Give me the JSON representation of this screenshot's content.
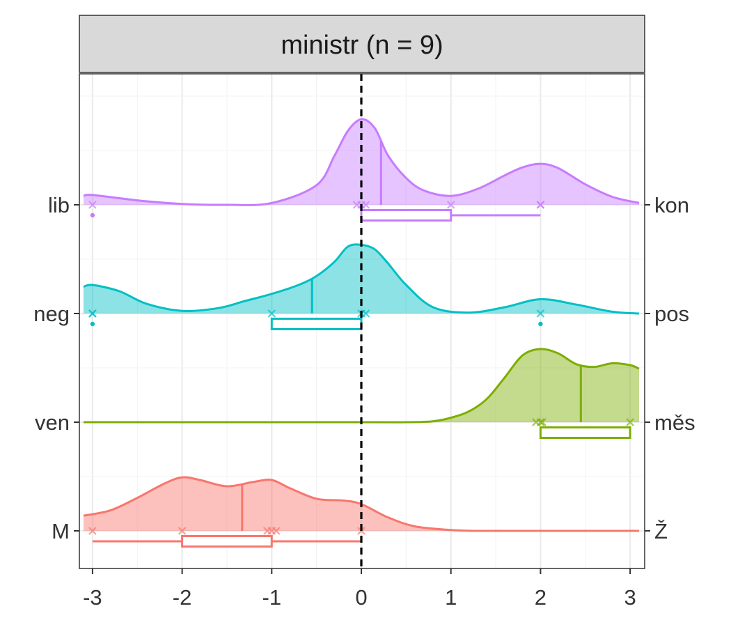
{
  "chart_data": {
    "type": "ridgeline",
    "title": "ministr (n = 9)",
    "xlabel": "",
    "ylabel": "",
    "xlim": [
      -3.12,
      3.12
    ],
    "x_ticks": [
      -3,
      -2,
      -1,
      0,
      1,
      2,
      3
    ],
    "x_tick_labels": [
      "-3",
      "-2",
      "-1",
      "0",
      "1",
      "2",
      "3"
    ],
    "reference_line": {
      "x": 0,
      "style": "dashed",
      "color": "#000000"
    },
    "grid": true,
    "legend": "none",
    "series": [
      {
        "left_label": "lib",
        "right_label": "kon",
        "color": "#C77CFF",
        "values": [
          -3,
          -0.05,
          0,
          0.05,
          1,
          2,
          2
        ],
        "outliers": [
          -3
        ],
        "median": 0.22,
        "box": {
          "q1": 0,
          "q3": 1,
          "whisker_low": 0,
          "whisker_high": 2
        },
        "density_x": [
          -3.1,
          -3,
          -2.5,
          -2,
          -1.5,
          -1,
          -0.5,
          -0.3,
          -0.15,
          0,
          0.15,
          0.3,
          0.5,
          0.7,
          1,
          1.3,
          1.6,
          1.8,
          2,
          2.2,
          2.5,
          2.8,
          3.1
        ],
        "density_y": [
          0.1,
          0.11,
          0.05,
          0.01,
          0,
          0.02,
          0.22,
          0.55,
          0.83,
          0.96,
          0.86,
          0.55,
          0.3,
          0.16,
          0.1,
          0.18,
          0.33,
          0.42,
          0.46,
          0.41,
          0.23,
          0.09,
          0.02
        ]
      },
      {
        "left_label": "neg",
        "right_label": "pos",
        "color": "#00BFC4",
        "values": [
          -3,
          -3,
          -1,
          0,
          0.05,
          2
        ],
        "outliers": [
          -3,
          2
        ],
        "median": -0.55,
        "box": {
          "q1": -1,
          "q3": 0,
          "whisker_low": -1,
          "whisker_high": 0
        },
        "density_x": [
          -3.1,
          -3,
          -2.7,
          -2.4,
          -2,
          -1.6,
          -1.3,
          -1,
          -0.7,
          -0.5,
          -0.3,
          -0.15,
          0,
          0.15,
          0.3,
          0.5,
          0.8,
          1.2,
          1.6,
          2,
          2.4,
          2.8,
          3.1
        ],
        "density_y": [
          0.3,
          0.32,
          0.25,
          0.11,
          0.03,
          0.06,
          0.14,
          0.22,
          0.32,
          0.42,
          0.58,
          0.75,
          0.77,
          0.72,
          0.56,
          0.32,
          0.07,
          0.01,
          0.07,
          0.16,
          0.1,
          0.02,
          0
        ]
      },
      {
        "left_label": "ven",
        "right_label": "měs",
        "color": "#7CAE00",
        "values": [
          1.95,
          2,
          2.02,
          3
        ],
        "outliers": [],
        "median": 2.45,
        "box": {
          "q1": 2,
          "q3": 3,
          "whisker_low": 2,
          "whisker_high": 3
        },
        "density_x": [
          -3.1,
          0,
          0.5,
          0.8,
          1,
          1.2,
          1.4,
          1.6,
          1.8,
          2,
          2.2,
          2.4,
          2.6,
          2.8,
          3,
          3.1
        ],
        "density_y": [
          0,
          0,
          0,
          0.01,
          0.05,
          0.12,
          0.26,
          0.5,
          0.75,
          0.82,
          0.77,
          0.65,
          0.62,
          0.66,
          0.64,
          0.6
        ]
      },
      {
        "left_label": "M",
        "right_label": "Ž",
        "color": "#F8766D",
        "values": [
          -3,
          -2,
          -1.05,
          -1,
          -0.95,
          0
        ],
        "outliers": [],
        "median": -1.33,
        "box": {
          "q1": -2,
          "q3": -1,
          "whisker_low": -3,
          "whisker_high": 0
        },
        "density_x": [
          -3.1,
          -2.8,
          -2.5,
          -2.2,
          -2,
          -1.8,
          -1.5,
          -1.2,
          -1,
          -0.8,
          -0.5,
          -0.2,
          0,
          0.3,
          0.6,
          1,
          1.3,
          2,
          3.1
        ],
        "density_y": [
          0.17,
          0.23,
          0.37,
          0.53,
          0.6,
          0.57,
          0.5,
          0.55,
          0.57,
          0.48,
          0.36,
          0.34,
          0.3,
          0.15,
          0.05,
          0.01,
          0,
          0,
          0
        ]
      }
    ]
  }
}
